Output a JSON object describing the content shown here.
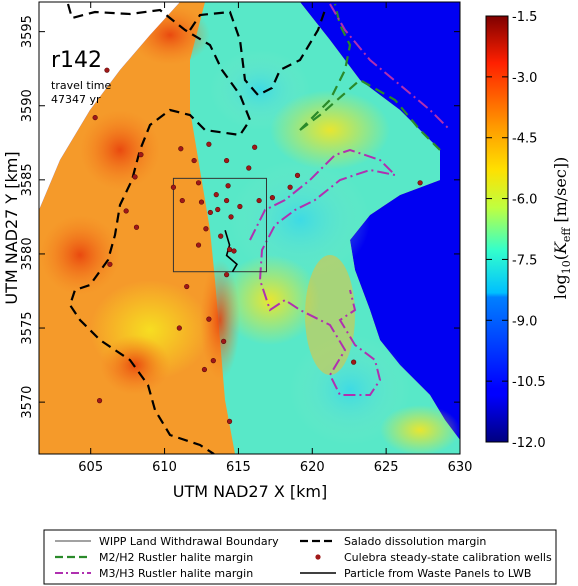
{
  "chart_data": {
    "type": "heatmap",
    "title": "",
    "xlabel": "UTM NAD27 X [km]",
    "ylabel": "UTM NAD27 Y [km]",
    "xlim": [
      601.5,
      630.0
    ],
    "ylim": [
      3566.5,
      3597.0
    ],
    "xticks": [
      "605",
      "610",
      "615",
      "620",
      "625",
      "630"
    ],
    "yticks": [
      "3570",
      "3575",
      "3580",
      "3585",
      "3590",
      "3595"
    ],
    "colorbar": {
      "label_prefix": "log",
      "label_sub": "10",
      "label_K": "K",
      "label_eff": "eff",
      "label_units": "[m/sec]",
      "range": [
        -12.0,
        -1.5
      ],
      "ticks": [
        "-1.5",
        "-3.0",
        "-4.5",
        "-6.0",
        "-7.5",
        "-9.0",
        "-10.5",
        "-12.0"
      ]
    },
    "annotations": {
      "realization": "r142",
      "travel_time_label": "travel time",
      "travel_time_value": "47347 yr"
    },
    "wipp_boundary": {
      "x": [
        610.6,
        616.9
      ],
      "y": [
        3578.8,
        3585.1
      ]
    },
    "wells": [
      {
        "x": 605.3,
        "y": 3589.2
      },
      {
        "x": 606.1,
        "y": 3592.4
      },
      {
        "x": 608.4,
        "y": 3586.7
      },
      {
        "x": 608.0,
        "y": 3585.2
      },
      {
        "x": 607.4,
        "y": 3582.9
      },
      {
        "x": 608.1,
        "y": 3581.8
      },
      {
        "x": 606.3,
        "y": 3579.3
      },
      {
        "x": 610.6,
        "y": 3584.5
      },
      {
        "x": 611.2,
        "y": 3583.6
      },
      {
        "x": 612.0,
        "y": 3586.3
      },
      {
        "x": 611.1,
        "y": 3587.1
      },
      {
        "x": 613.0,
        "y": 3587.4
      },
      {
        "x": 614.2,
        "y": 3586.3
      },
      {
        "x": 615.7,
        "y": 3585.8
      },
      {
        "x": 612.3,
        "y": 3584.8
      },
      {
        "x": 612.5,
        "y": 3583.5
      },
      {
        "x": 613.1,
        "y": 3582.8
      },
      {
        "x": 613.6,
        "y": 3583.0
      },
      {
        "x": 613.5,
        "y": 3584.0
      },
      {
        "x": 614.3,
        "y": 3584.6
      },
      {
        "x": 614.2,
        "y": 3583.6
      },
      {
        "x": 614.5,
        "y": 3582.5
      },
      {
        "x": 612.8,
        "y": 3581.7
      },
      {
        "x": 613.8,
        "y": 3581.2
      },
      {
        "x": 614.4,
        "y": 3580.3
      },
      {
        "x": 614.7,
        "y": 3580.2
      },
      {
        "x": 612.3,
        "y": 3580.6
      },
      {
        "x": 614.2,
        "y": 3578.6
      },
      {
        "x": 615.1,
        "y": 3583.2
      },
      {
        "x": 616.4,
        "y": 3583.6
      },
      {
        "x": 617.3,
        "y": 3583.8
      },
      {
        "x": 618.5,
        "y": 3584.5
      },
      {
        "x": 619.0,
        "y": 3585.3
      },
      {
        "x": 616.1,
        "y": 3587.2
      },
      {
        "x": 611.5,
        "y": 3577.8
      },
      {
        "x": 611.0,
        "y": 3575.0
      },
      {
        "x": 613.0,
        "y": 3575.6
      },
      {
        "x": 614.0,
        "y": 3574.1
      },
      {
        "x": 613.3,
        "y": 3572.8
      },
      {
        "x": 612.7,
        "y": 3572.2
      },
      {
        "x": 605.6,
        "y": 3570.1
      },
      {
        "x": 614.4,
        "y": 3568.7
      },
      {
        "x": 622.8,
        "y": 3572.7
      },
      {
        "x": 627.3,
        "y": 3584.8
      }
    ]
  },
  "legend": {
    "items": [
      {
        "label": "WIPP Land Withdrawal Boundary",
        "style": "thin-solid",
        "color": "#444444"
      },
      {
        "label": "Salado dissolution margin",
        "style": "black-dashed",
        "color": "#000000"
      },
      {
        "label": "M2/H2 Rustler halite margin",
        "style": "green-dashed",
        "color": "#2a8a2a"
      },
      {
        "label": "Culebra steady-state calibration wells",
        "style": "red-dot",
        "color": "#a01818"
      },
      {
        "label": "M3/H3 Rustler halite margin",
        "style": "magenta-dashdot",
        "color": "#b030b0"
      },
      {
        "label": "Particle from Waste Panels to LWB",
        "style": "black-solid",
        "color": "#000000"
      }
    ]
  },
  "colors": {
    "low": "#00007f",
    "high": "#7f0000"
  }
}
